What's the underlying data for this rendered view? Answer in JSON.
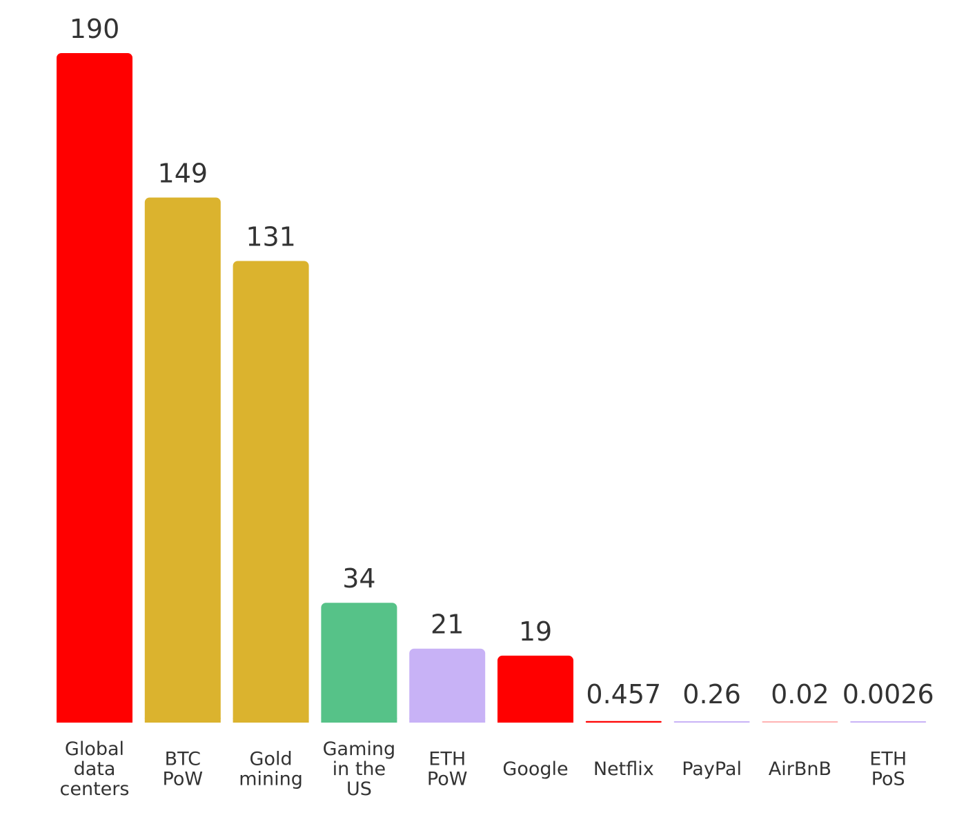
{
  "chart_data": {
    "type": "bar",
    "categories": [
      [
        "Global",
        "data",
        "centers"
      ],
      [
        "BTC",
        "PoW"
      ],
      [
        "Gold",
        "mining"
      ],
      [
        "Gaming",
        "in the",
        "US"
      ],
      [
        "ETH",
        "PoW"
      ],
      [
        "Google"
      ],
      [
        "Netflix"
      ],
      [
        "PayPal"
      ],
      [
        "AirBnB"
      ],
      [
        "ETH",
        "PoS"
      ]
    ],
    "values": [
      190,
      149,
      131,
      34,
      21,
      19,
      0.457,
      0.26,
      0.02,
      0.0026
    ],
    "value_labels": [
      "190",
      "149",
      "131",
      "34",
      "21",
      "19",
      "0.457",
      "0.26",
      "0.02",
      "0.0026"
    ],
    "colors": [
      "#ff0000",
      "#dbb32e",
      "#dbb32e",
      "#56c288",
      "#c8b2f6",
      "#ff0000",
      "#ff0000",
      "#c8b2f6",
      "#ffb3b3",
      "#c8b2f6"
    ],
    "ylim": [
      0,
      190
    ],
    "grid": false,
    "legend": "none"
  }
}
